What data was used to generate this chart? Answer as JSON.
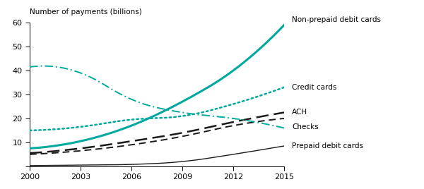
{
  "years": [
    2000,
    2003,
    2006,
    2009,
    2012,
    2015
  ],
  "non_prepaid_debit": [
    7.5,
    10.5,
    17.0,
    27.0,
    40.0,
    59.0
  ],
  "credit_cards": [
    15.0,
    16.5,
    19.5,
    21.0,
    26.0,
    33.0
  ],
  "ach": [
    5.5,
    7.5,
    10.5,
    14.0,
    18.5,
    22.5
  ],
  "checks_up": [
    5.0,
    6.5,
    9.0,
    12.5,
    17.0,
    20.0
  ],
  "prepaid_debit": [
    0.3,
    0.5,
    0.8,
    2.0,
    5.0,
    8.5
  ],
  "checks_decline": [
    41.5,
    39.0,
    28.0,
    22.5,
    20.0,
    16.0
  ],
  "teal": "#00a99d",
  "black": "#1a1a1a",
  "background": "#ffffff",
  "ylabel": "Number of payments (billions)",
  "ylim": [
    0,
    60
  ],
  "yticks": [
    0,
    10,
    20,
    30,
    40,
    50,
    60
  ],
  "xticks": [
    2000,
    2003,
    2006,
    2009,
    2012,
    2015
  ],
  "label_non_prepaid": "Non-prepaid debit cards",
  "label_credit": "Credit cards",
  "label_ach": "ACH",
  "label_checks": "Checks",
  "label_prepaid": "Prepaid debit cards",
  "annotation_fontsize": 7.5
}
